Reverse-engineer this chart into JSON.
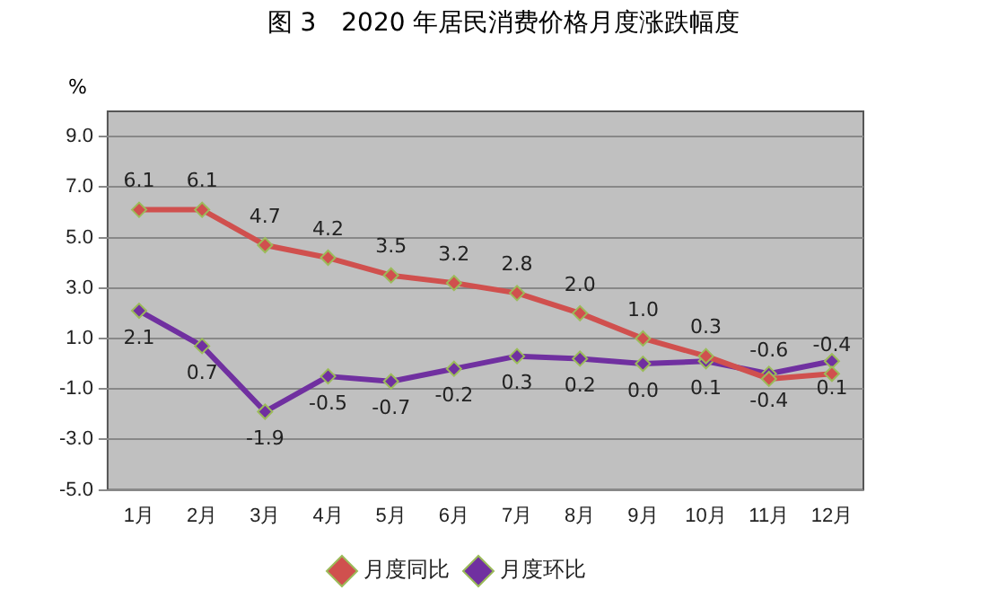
{
  "chart_data": {
    "type": "line",
    "title": "图 3　2020 年居民消费价格月度涨跌幅度",
    "ylabel": "%",
    "categories": [
      "1月",
      "2月",
      "3月",
      "4月",
      "5月",
      "6月",
      "7月",
      "8月",
      "9月",
      "10月",
      "11月",
      "12月"
    ],
    "series": [
      {
        "name": "月度同比",
        "color": "#d0504e",
        "values": [
          6.1,
          6.1,
          4.7,
          4.2,
          3.5,
          3.2,
          2.8,
          2.0,
          1.0,
          0.3,
          -0.6,
          -0.4
        ],
        "value_labels": [
          "6.1",
          "6.1",
          "4.7",
          "4.2",
          "3.5",
          "3.2",
          "2.8",
          "2.0",
          "1.0",
          "0.3",
          "-0.6",
          "-0.4"
        ]
      },
      {
        "name": "月度环比",
        "color": "#7030a0",
        "values": [
          2.1,
          0.7,
          -1.9,
          -0.5,
          -0.7,
          -0.2,
          0.3,
          0.2,
          0.0,
          0.1,
          -0.4,
          0.1
        ],
        "value_labels": [
          "2.1",
          "0.7",
          "-1.9",
          "-0.5",
          "-0.7",
          "-0.2",
          "0.3",
          "0.2",
          "0.0",
          "0.1",
          "-0.4",
          "0.1"
        ]
      }
    ],
    "ylim": [
      -5,
      10
    ],
    "yticks": [
      {
        "value": -5,
        "label": "-5.0"
      },
      {
        "value": -3,
        "label": "-3.0"
      },
      {
        "value": -1,
        "label": "-1.0"
      },
      {
        "value": 1,
        "label": "1.0"
      },
      {
        "value": 3,
        "label": "3.0"
      },
      {
        "value": 5,
        "label": "5.0"
      },
      {
        "value": 7,
        "label": "7.0"
      },
      {
        "value": 9,
        "label": "9.0"
      }
    ],
    "grid": "y",
    "legend": "bottom",
    "marker": "diamond",
    "line_style": "solid"
  }
}
